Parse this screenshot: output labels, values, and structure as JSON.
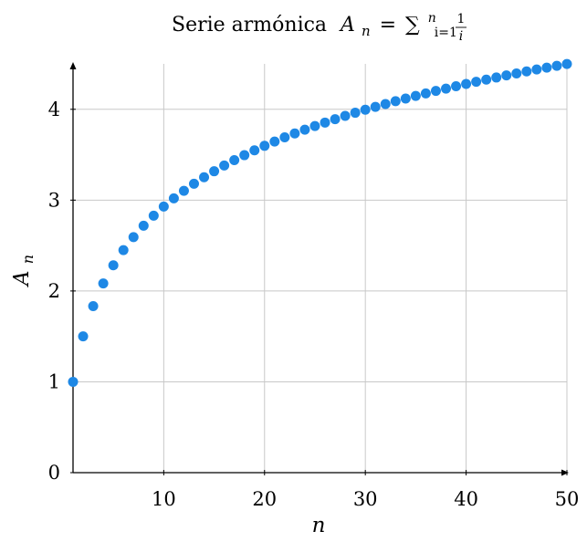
{
  "chart_data": {
    "type": "scatter",
    "title": "Serie armónica",
    "title_formula": {
      "lhs": "A",
      "lhs_sub": "n",
      "eq": "=",
      "sum": "∑",
      "sum_upper": "n",
      "sum_lower": "i=1",
      "frac_num": "1",
      "frac_den": "i"
    },
    "xlabel": "n",
    "ylabel": "A",
    "ylabel_sub": "n",
    "xlim": [
      1,
      50
    ],
    "ylim": [
      0,
      4.5
    ],
    "x_ticks": [
      10,
      20,
      30,
      40,
      50
    ],
    "y_ticks": [
      0,
      1,
      2,
      3,
      4
    ],
    "grid": true,
    "marker_color": "#1e88e5",
    "series": [
      {
        "x": [
          1,
          2,
          3,
          4,
          5,
          6,
          7,
          8,
          9,
          10,
          11,
          12,
          13,
          14,
          15,
          16,
          17,
          18,
          19,
          20,
          21,
          22,
          23,
          24,
          25,
          26,
          27,
          28,
          29,
          30,
          31,
          32,
          33,
          34,
          35,
          36,
          37,
          38,
          39,
          40,
          41,
          42,
          43,
          44,
          45,
          46,
          47,
          48,
          49,
          50
        ],
        "values": [
          1.0,
          1.5,
          1.833,
          2.083,
          2.283,
          2.45,
          2.593,
          2.718,
          2.829,
          2.929,
          3.02,
          3.103,
          3.18,
          3.252,
          3.318,
          3.381,
          3.44,
          3.495,
          3.548,
          3.598,
          3.645,
          3.691,
          3.734,
          3.776,
          3.816,
          3.854,
          3.891,
          3.927,
          3.962,
          3.995,
          4.027,
          4.058,
          4.089,
          4.118,
          4.147,
          4.175,
          4.202,
          4.228,
          4.254,
          4.279,
          4.303,
          4.327,
          4.35,
          4.373,
          4.395,
          4.417,
          4.438,
          4.459,
          4.479,
          4.499
        ]
      }
    ]
  }
}
